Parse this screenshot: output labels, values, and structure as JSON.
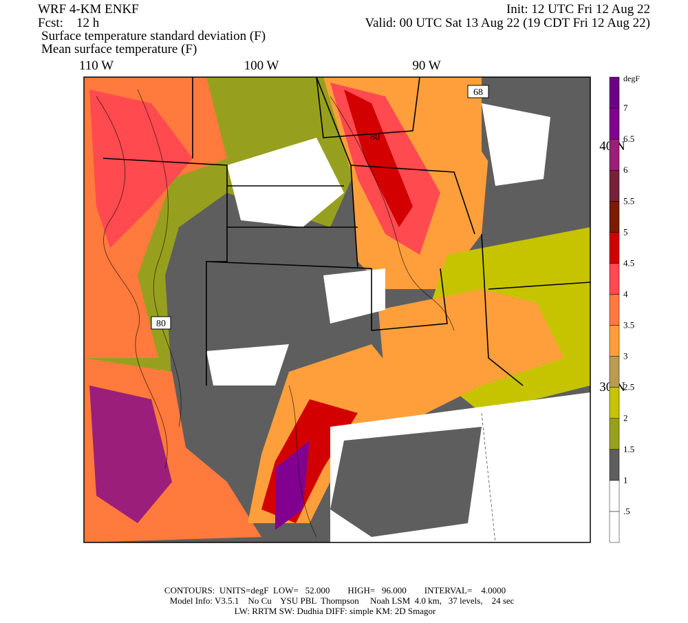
{
  "header": {
    "model": "WRF 4-KM ENKF",
    "init": "Init: 12 UTC Fri 12 Aug 22",
    "forecast": "Fcst:    12 h",
    "valid": "Valid: 00 UTC Sat 13 Aug 22 (19 CDT Fri 12 Aug 22)",
    "field_1": "Surface temperature standard deviation (F)",
    "field_2": "Mean surface temperature (F)"
  },
  "map": {
    "longitude_labels": [
      "110 W",
      "100 W",
      "90 W"
    ],
    "latitude_labels": [
      "40 N",
      "30 N"
    ],
    "contour_labels": [
      "68",
      "80",
      "80"
    ]
  },
  "colorbar": {
    "unit": "degF",
    "colors": [
      "#ffffff",
      "#ffffff",
      "#5e5e5e",
      "#97a01e",
      "#c6c400",
      "#b99c4e",
      "#ff9f3c",
      "#ff7a3c",
      "#ff4a50",
      "#d20000",
      "#7e1a00",
      "#7a1f3c",
      "#9b1f7a",
      "#82008f",
      "#6d0086"
    ],
    "labels": [
      ".5",
      "1",
      "1.5",
      "2",
      "2.5",
      "3",
      "3.5",
      "4",
      "4.5",
      "5",
      "5.5",
      "6",
      "6.5",
      "7"
    ]
  },
  "footer": {
    "contours": "CONTOURS:  UNITS=degF  LOW=   52.000        HIGH=   96.000        INTERVAL=    4.0000",
    "model_info": "Model Info: V3.5.1    No Cu    YSU PBL  Thompson     Noah LSM  4.0 km,   37 levels,    24 sec",
    "physics": "LW: RRTM SW: Dudhia  DIFF: simple KM: 2D Smagor"
  }
}
